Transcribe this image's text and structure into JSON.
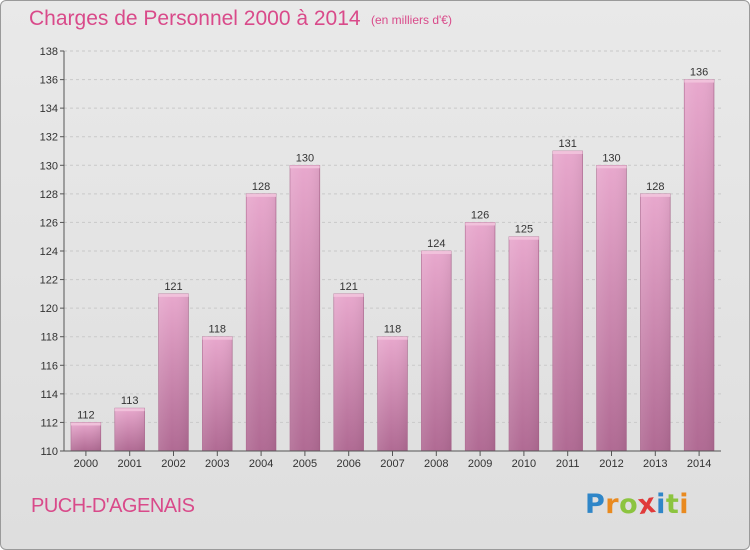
{
  "header": {
    "title": "Charges de Personnel 2000 à 2014",
    "subtitle": "(en milliers d'€)"
  },
  "footer": {
    "city": "PUCH-D'AGENAIS",
    "logo": {
      "letters": [
        "P",
        "r",
        "o",
        "x",
        "i",
        "t",
        "i"
      ],
      "colors": [
        "#2f86c8",
        "#e98a1f",
        "#8cc43f",
        "#e03a3a",
        "#2f86c8",
        "#8cc43f",
        "#e98a1f"
      ]
    }
  },
  "chart_data": {
    "type": "bar",
    "title": "Charges de Personnel 2000 à 2014",
    "subtitle": "(en milliers d'€)",
    "xlabel": "",
    "ylabel": "",
    "categories": [
      "2000",
      "2001",
      "2002",
      "2003",
      "2004",
      "2005",
      "2006",
      "2007",
      "2008",
      "2009",
      "2010",
      "2011",
      "2012",
      "2013",
      "2014"
    ],
    "values": [
      112,
      113,
      121,
      118,
      128,
      130,
      121,
      118,
      124,
      126,
      125,
      131,
      130,
      128,
      136
    ],
    "ylim": [
      110,
      138
    ],
    "yticks": [
      110,
      112,
      114,
      116,
      118,
      120,
      122,
      124,
      126,
      128,
      130,
      132,
      134,
      136,
      138
    ],
    "grid": true,
    "bar_color": "#d98bb6"
  }
}
